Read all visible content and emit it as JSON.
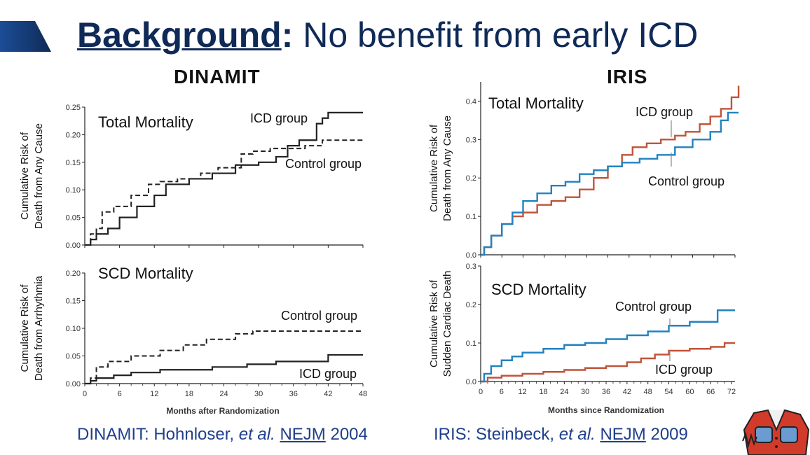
{
  "slide": {
    "title_keyword": "Background",
    "title_colon": ":",
    "title_rest": " No benefit from early ICD",
    "colors": {
      "title": "#0f2a57",
      "accent": "#0f2a57",
      "citation": "#1f3f8c"
    }
  },
  "panels": {
    "dinamit": {
      "title": "DINAMIT"
    },
    "iris": {
      "title": "IRIS"
    }
  },
  "citations": {
    "left": {
      "prefix": "DINAMIT: Hohnloser, ",
      "etal": "et al.",
      "journal": "NEJM",
      "year": " 2004"
    },
    "right": {
      "prefix": "IRIS: Steinbeck, ",
      "etal": "et al.",
      "journal": "NEJM",
      "year": "  2009"
    }
  },
  "chart_data": [
    {
      "id": "dinamit_total",
      "type": "line",
      "step": true,
      "title": "Total Mortality",
      "ylabel": [
        "Cumulative Risk of",
        "Death from Any Cause"
      ],
      "xlabel": "",
      "xlim": [
        0,
        48
      ],
      "ylim": [
        0,
        0.25
      ],
      "yticks": [
        "0.00",
        "0.05",
        "0.10",
        "0.15",
        "0.20",
        "0.25"
      ],
      "xticks": [],
      "grid": false,
      "series": [
        {
          "name": "ICD group",
          "style": "solid",
          "color": "#222222",
          "points": [
            [
              0,
              0
            ],
            [
              1,
              0.01
            ],
            [
              2,
              0.02
            ],
            [
              4,
              0.03
            ],
            [
              6,
              0.05
            ],
            [
              9,
              0.07
            ],
            [
              12,
              0.09
            ],
            [
              14,
              0.11
            ],
            [
              18,
              0.12
            ],
            [
              22,
              0.13
            ],
            [
              26,
              0.145
            ],
            [
              30,
              0.15
            ],
            [
              33,
              0.16
            ],
            [
              35,
              0.18
            ],
            [
              37,
              0.19
            ],
            [
              40,
              0.22
            ],
            [
              41,
              0.23
            ],
            [
              42,
              0.24
            ],
            [
              48,
              0.24
            ]
          ]
        },
        {
          "name": "Control group",
          "style": "dashed",
          "color": "#222222",
          "points": [
            [
              0,
              0
            ],
            [
              1,
              0.02
            ],
            [
              2,
              0.03
            ],
            [
              3,
              0.06
            ],
            [
              5,
              0.07
            ],
            [
              8,
              0.09
            ],
            [
              11,
              0.11
            ],
            [
              13,
              0.115
            ],
            [
              16,
              0.12
            ],
            [
              20,
              0.13
            ],
            [
              23,
              0.14
            ],
            [
              27,
              0.165
            ],
            [
              29,
              0.17
            ],
            [
              32,
              0.175
            ],
            [
              36,
              0.175
            ],
            [
              38,
              0.18
            ],
            [
              40,
              0.18
            ],
            [
              41,
              0.19
            ],
            [
              48,
              0.19
            ]
          ]
        }
      ]
    },
    {
      "id": "dinamit_scd",
      "type": "line",
      "step": true,
      "title": "SCD Mortality",
      "ylabel": [
        "Cumulative Risk of",
        "Death from Arrhythmia"
      ],
      "xlabel": "Months after Randomization",
      "xlim": [
        0,
        48
      ],
      "ylim": [
        0,
        0.2
      ],
      "yticks": [
        "0.00",
        "0.05",
        "0.10",
        "0.15",
        "0.20"
      ],
      "xticks": [
        "0",
        "6",
        "12",
        "18",
        "24",
        "30",
        "36",
        "42",
        "48"
      ],
      "grid": false,
      "series": [
        {
          "name": "ICD group",
          "style": "solid",
          "color": "#222222",
          "points": [
            [
              0,
              0
            ],
            [
              1,
              0.005
            ],
            [
              2,
              0.01
            ],
            [
              5,
              0.015
            ],
            [
              8,
              0.02
            ],
            [
              13,
              0.025
            ],
            [
              22,
              0.03
            ],
            [
              28,
              0.035
            ],
            [
              33,
              0.04
            ],
            [
              42,
              0.052
            ],
            [
              48,
              0.052
            ]
          ]
        },
        {
          "name": "Control group",
          "style": "dashed",
          "color": "#222222",
          "points": [
            [
              0,
              0
            ],
            [
              1,
              0.01
            ],
            [
              2,
              0.03
            ],
            [
              4,
              0.04
            ],
            [
              8,
              0.05
            ],
            [
              13,
              0.06
            ],
            [
              17,
              0.07
            ],
            [
              21,
              0.08
            ],
            [
              26,
              0.09
            ],
            [
              29,
              0.095
            ],
            [
              48,
              0.095
            ]
          ]
        }
      ]
    },
    {
      "id": "iris_total",
      "type": "line",
      "step": true,
      "title": "Total Mortality",
      "ylabel": [
        "Cumulative Risk of",
        "Death from Any Cause"
      ],
      "xlabel": "",
      "xlim": [
        0,
        72
      ],
      "ylim": [
        0,
        0.45
      ],
      "yticks": [
        "0.0",
        "0.1",
        "0.2",
        "0.3",
        "0.4"
      ],
      "xticks": [],
      "grid": false,
      "series": [
        {
          "name": "ICD group",
          "style": "solid",
          "color": "#c0543a",
          "points": [
            [
              0,
              0
            ],
            [
              1,
              0.02
            ],
            [
              3,
              0.05
            ],
            [
              6,
              0.08
            ],
            [
              9,
              0.1
            ],
            [
              12,
              0.11
            ],
            [
              16,
              0.13
            ],
            [
              20,
              0.14
            ],
            [
              24,
              0.15
            ],
            [
              28,
              0.17
            ],
            [
              32,
              0.2
            ],
            [
              36,
              0.23
            ],
            [
              40,
              0.26
            ],
            [
              43,
              0.28
            ],
            [
              47,
              0.29
            ],
            [
              51,
              0.3
            ],
            [
              55,
              0.31
            ],
            [
              58,
              0.32
            ],
            [
              62,
              0.34
            ],
            [
              65,
              0.36
            ],
            [
              68,
              0.38
            ],
            [
              71,
              0.41
            ],
            [
              73,
              0.44
            ]
          ]
        },
        {
          "name": "Control group",
          "style": "solid",
          "color": "#2282c0",
          "points": [
            [
              0,
              0
            ],
            [
              1,
              0.02
            ],
            [
              3,
              0.05
            ],
            [
              6,
              0.08
            ],
            [
              9,
              0.11
            ],
            [
              12,
              0.14
            ],
            [
              16,
              0.16
            ],
            [
              20,
              0.18
            ],
            [
              24,
              0.19
            ],
            [
              28,
              0.21
            ],
            [
              32,
              0.22
            ],
            [
              36,
              0.23
            ],
            [
              40,
              0.24
            ],
            [
              45,
              0.25
            ],
            [
              50,
              0.26
            ],
            [
              55,
              0.28
            ],
            [
              60,
              0.3
            ],
            [
              65,
              0.32
            ],
            [
              68,
              0.35
            ],
            [
              70,
              0.37
            ],
            [
              73,
              0.37
            ]
          ]
        }
      ]
    },
    {
      "id": "iris_scd",
      "type": "line",
      "step": true,
      "title": "SCD Mortality",
      "ylabel": [
        "Cumulative Risk of",
        "Sudden Cardiac Death"
      ],
      "xlabel": "Months since Randomization",
      "xlim": [
        0,
        73
      ],
      "ylim": [
        0,
        0.3
      ],
      "yticks": [
        "0.0",
        "0.1",
        "0.2",
        "0.3"
      ],
      "xticks": [
        "0",
        "6",
        "12",
        "18",
        "24",
        "30",
        "36",
        "42",
        "48",
        "54",
        "60",
        "66",
        "72"
      ],
      "grid": false,
      "series": [
        {
          "name": "ICD group",
          "style": "solid",
          "color": "#c0543a",
          "points": [
            [
              0,
              0
            ],
            [
              2,
              0.01
            ],
            [
              6,
              0.015
            ],
            [
              12,
              0.02
            ],
            [
              18,
              0.025
            ],
            [
              24,
              0.03
            ],
            [
              30,
              0.035
            ],
            [
              36,
              0.04
            ],
            [
              42,
              0.05
            ],
            [
              46,
              0.06
            ],
            [
              50,
              0.07
            ],
            [
              54,
              0.08
            ],
            [
              60,
              0.085
            ],
            [
              66,
              0.09
            ],
            [
              70,
              0.1
            ],
            [
              73,
              0.1
            ]
          ]
        },
        {
          "name": "Control group",
          "style": "solid",
          "color": "#2282c0",
          "points": [
            [
              0,
              0
            ],
            [
              1,
              0.02
            ],
            [
              3,
              0.04
            ],
            [
              6,
              0.055
            ],
            [
              9,
              0.065
            ],
            [
              12,
              0.075
            ],
            [
              18,
              0.085
            ],
            [
              24,
              0.095
            ],
            [
              30,
              0.1
            ],
            [
              36,
              0.11
            ],
            [
              42,
              0.12
            ],
            [
              48,
              0.13
            ],
            [
              54,
              0.145
            ],
            [
              60,
              0.155
            ],
            [
              68,
              0.185
            ],
            [
              73,
              0.185
            ]
          ]
        }
      ]
    }
  ]
}
